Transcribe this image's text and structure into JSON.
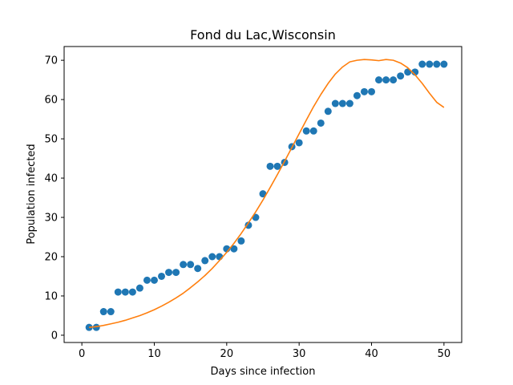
{
  "chart_data": {
    "type": "scatter",
    "title": "Fond du Lac,Wisconsin",
    "xlabel": "Days since infection",
    "ylabel": "Population infected",
    "xlim": [
      -2.45,
      52.45
    ],
    "ylim": [
      -1.85,
      73.5
    ],
    "xticks": [
      0,
      10,
      20,
      30,
      40,
      50
    ],
    "yticks": [
      0,
      10,
      20,
      30,
      40,
      50,
      60,
      70
    ],
    "grid": false,
    "legend": "none",
    "series": [
      {
        "kind": "scatter",
        "color": "#1f77b4",
        "x": [
          1,
          2,
          3,
          4,
          5,
          6,
          7,
          8,
          9,
          10,
          11,
          12,
          13,
          14,
          15,
          16,
          17,
          18,
          19,
          20,
          21,
          22,
          23,
          24,
          25,
          26,
          27,
          28,
          29,
          30,
          31,
          32,
          33,
          34,
          35,
          36,
          37,
          38,
          39,
          40,
          41,
          42,
          43,
          44,
          45,
          46,
          47,
          48,
          49,
          50
        ],
        "y": [
          2,
          2,
          6,
          6,
          11,
          11,
          11,
          12,
          14,
          14,
          15,
          16,
          16,
          18,
          18,
          17,
          19,
          20,
          20,
          22,
          22,
          24,
          28,
          30,
          36,
          43,
          43,
          44,
          48,
          49,
          52,
          52,
          54,
          57,
          59,
          59,
          59,
          61,
          62,
          62,
          65,
          65,
          65,
          66,
          67,
          67,
          69,
          69,
          69,
          69
        ]
      },
      {
        "kind": "line",
        "color": "#ff7f0e",
        "x": [
          1,
          2,
          3,
          4,
          5,
          6,
          7,
          8,
          9,
          10,
          11,
          12,
          13,
          14,
          15,
          16,
          17,
          18,
          19,
          20,
          21,
          22,
          23,
          24,
          25,
          26,
          27,
          28,
          29,
          30,
          31,
          32,
          33,
          34,
          35,
          36,
          37,
          38,
          39,
          40,
          41,
          42,
          43,
          44,
          45,
          46,
          47,
          48,
          49,
          50
        ],
        "y": [
          2.0,
          2.2,
          2.5,
          2.9,
          3.3,
          3.8,
          4.4,
          5.0,
          5.7,
          6.5,
          7.4,
          8.4,
          9.5,
          10.7,
          12.1,
          13.6,
          15.2,
          17.0,
          19.0,
          21.1,
          23.4,
          25.9,
          28.6,
          31.4,
          34.4,
          37.6,
          40.9,
          44.3,
          47.8,
          51.3,
          54.8,
          58.2,
          61.3,
          64.1,
          66.5,
          68.3,
          69.6,
          70.0,
          70.2,
          70.1,
          69.9,
          70.2,
          70.0,
          69.3,
          68.1,
          66.3,
          64.1,
          61.6,
          59.3,
          58.0
        ]
      }
    ]
  }
}
